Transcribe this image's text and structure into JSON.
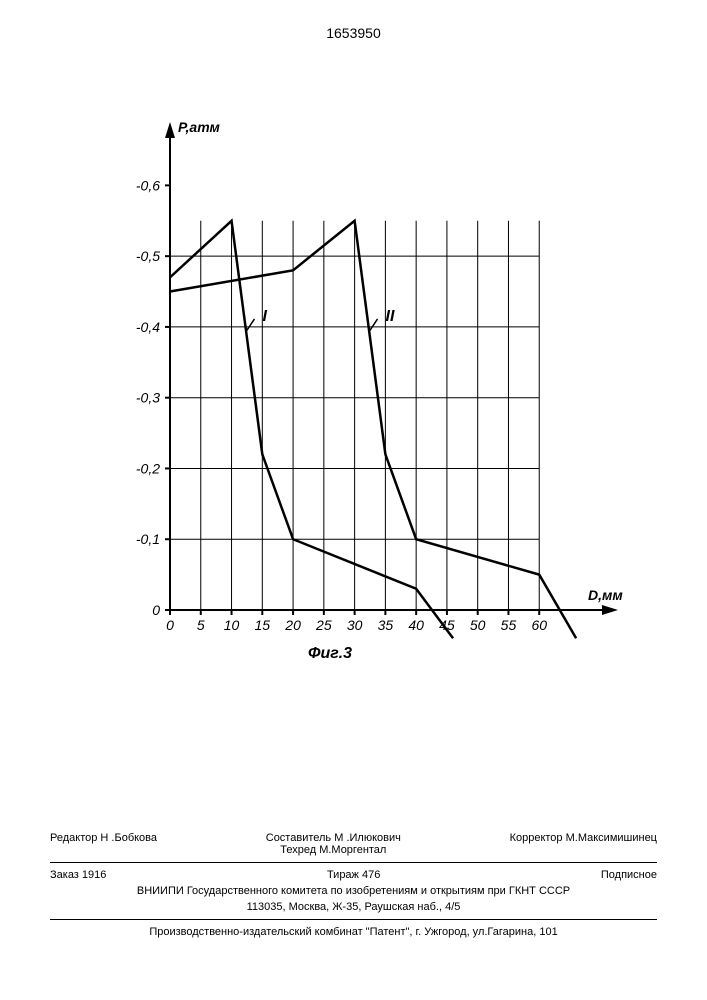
{
  "header": {
    "patent_number": "1653950"
  },
  "chart": {
    "type": "line",
    "y_axis": {
      "label": "P,атм",
      "ticks": [
        "-0,6",
        "-0,5",
        "-0,4",
        "-0,3",
        "-0,2",
        "-0,1",
        "0"
      ],
      "tick_values": [
        0.6,
        0.5,
        0.4,
        0.3,
        0.2,
        0.1,
        0
      ],
      "arrow": true
    },
    "x_axis": {
      "label": "D,мм",
      "ticks": [
        "0",
        "5",
        "10",
        "15",
        "20",
        "25",
        "30",
        "35",
        "40",
        "45",
        "50",
        "55",
        "60"
      ],
      "tick_values": [
        0,
        5,
        10,
        15,
        20,
        25,
        30,
        35,
        40,
        45,
        50,
        55,
        60
      ],
      "arrow": true
    },
    "caption": "Фиг.3",
    "series": [
      {
        "label": "I",
        "points": [
          {
            "x": 0,
            "y": 0.47
          },
          {
            "x": 10,
            "y": 0.55
          },
          {
            "x": 15,
            "y": 0.22
          },
          {
            "x": 20,
            "y": 0.1
          },
          {
            "x": 40,
            "y": 0.03
          },
          {
            "x": 46,
            "y": -0.04
          }
        ],
        "label_pos": {
          "x": 16,
          "y": 0.4
        }
      },
      {
        "label": "II",
        "points": [
          {
            "x": 0,
            "y": 0.45
          },
          {
            "x": 20,
            "y": 0.48
          },
          {
            "x": 30,
            "y": 0.55
          },
          {
            "x": 35,
            "y": 0.22
          },
          {
            "x": 40,
            "y": 0.1
          },
          {
            "x": 60,
            "y": 0.05
          },
          {
            "x": 66,
            "y": -0.04
          }
        ],
        "label_pos": {
          "x": 36,
          "y": 0.4
        }
      }
    ],
    "plot": {
      "x_min": 0,
      "x_max": 65,
      "y_min": 0,
      "y_max": 0.65,
      "grid_color": "#000000",
      "line_color": "#000000",
      "line_width": 2,
      "grid_width": 1,
      "font_size": 14
    }
  },
  "footer": {
    "composer_label": "Составитель",
    "composer": "М .Илюкович",
    "editor_label": "Редактор",
    "editor": "Н .Бобкова",
    "techred_label": "Техред",
    "techred": "М.Моргентал",
    "corrector_label": "Корректор",
    "corrector": "М.Максимишинец",
    "order_label": "Заказ",
    "order": "1916",
    "tirazh_label": "Тираж",
    "tirazh": "476",
    "subscription": "Подписное",
    "org_line1": "ВНИИПИ Государственного комитета по изобретениям и открытиям при ГКНТ СССР",
    "org_line2": "113035, Москва, Ж-35, Раушская наб., 4/5",
    "publisher": "Производственно-издательский комбинат \"Патент\", г. Ужгород, ул.Гагарина, 101"
  }
}
